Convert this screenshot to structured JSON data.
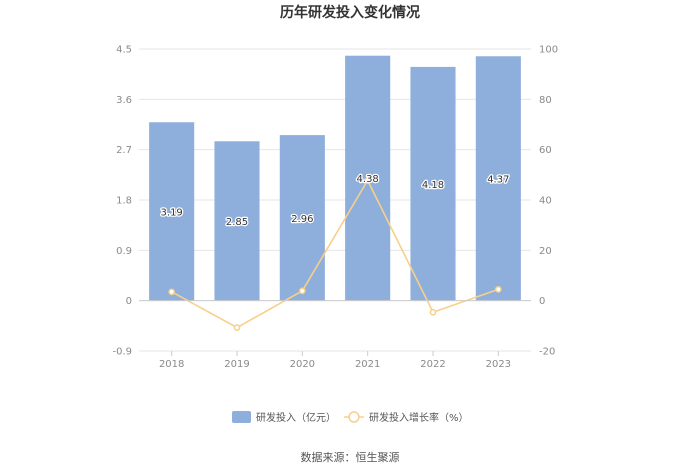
{
  "chart_data": {
    "type": "bar",
    "title": "历年研发投入变化情况",
    "categories": [
      "2018",
      "2019",
      "2020",
      "2021",
      "2022",
      "2023"
    ],
    "series": [
      {
        "name": "研发投入（亿元）",
        "type": "bar",
        "axis": "left",
        "values": [
          3.19,
          2.85,
          2.96,
          4.38,
          4.18,
          4.37
        ],
        "labels": [
          "3.19",
          "2.85",
          "2.96",
          "4.38",
          "4.18",
          "4.37"
        ],
        "color": "#8eaedb"
      },
      {
        "name": "研发投入增长率（%）",
        "type": "line",
        "axis": "right",
        "values": [
          3.5,
          -10.7,
          3.9,
          47.8,
          -4.6,
          4.5
        ],
        "color": "#f7d08a"
      }
    ],
    "y_left": {
      "min": -0.9,
      "max": 4.5,
      "ticks": [
        "-0.9",
        "0",
        "0.9",
        "1.8",
        "2.7",
        "3.6",
        "4.5"
      ]
    },
    "y_right": {
      "min": -20,
      "max": 100,
      "ticks": [
        "-20",
        "0",
        "20",
        "40",
        "60",
        "80",
        "100"
      ]
    },
    "grid": true,
    "legend_position": "bottom"
  },
  "source": "数据来源：恒生聚源"
}
